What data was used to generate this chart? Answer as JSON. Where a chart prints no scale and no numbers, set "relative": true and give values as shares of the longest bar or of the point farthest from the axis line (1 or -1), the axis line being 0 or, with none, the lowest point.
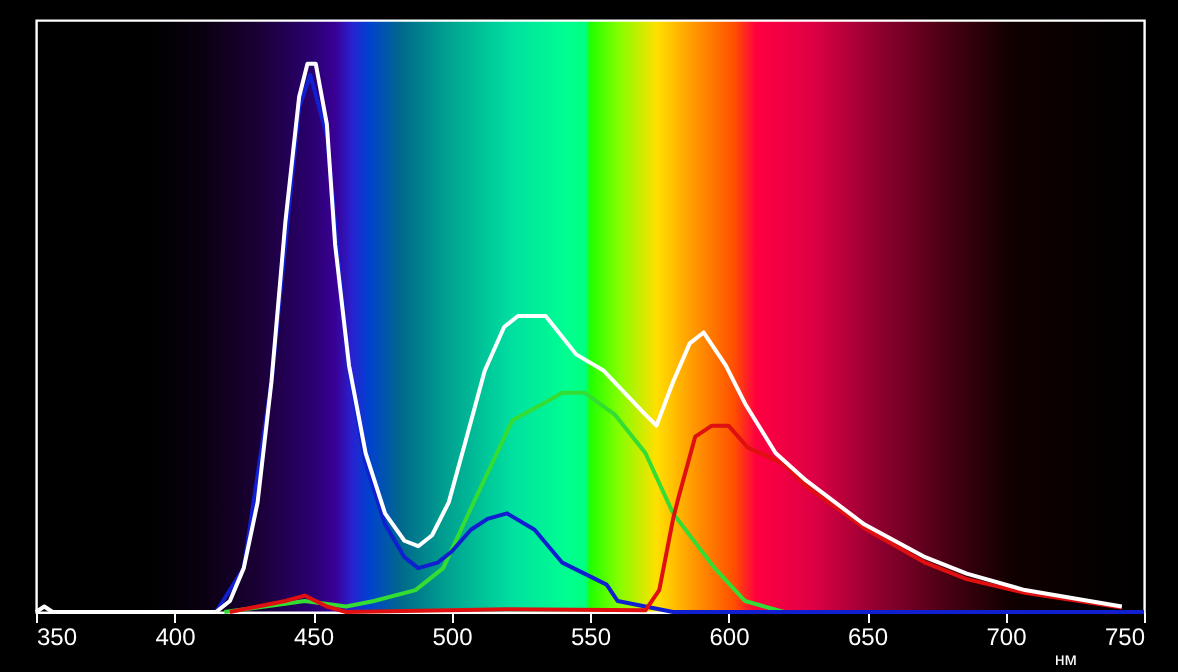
{
  "chart_data": {
    "type": "line",
    "xlabel": "нм",
    "relative": true,
    "xlim": [
      350,
      750
    ],
    "xticks": [
      350,
      400,
      450,
      500,
      550,
      600,
      650,
      700,
      750
    ],
    "grid": false,
    "line_style": "solid",
    "marker": "none",
    "series": [
      {
        "color": "#33dd33",
        "x": [
          418,
          440,
          447,
          462,
          472,
          487,
          497,
          508,
          522,
          533,
          540,
          548,
          559,
          570,
          580,
          595,
          606,
          620,
          750
        ],
        "values": [
          0,
          0.015,
          0.02,
          0.01,
          0.02,
          0.04,
          0.08,
          0.2,
          0.35,
          0.38,
          0.4,
          0.4,
          0.36,
          0.29,
          0.18,
          0.08,
          0.02,
          0,
          0
        ]
      },
      {
        "color": "#1020d0",
        "x": [
          415,
          425,
          435,
          445,
          449,
          455,
          463,
          469,
          476,
          483,
          488,
          495,
          500,
          507,
          513,
          520,
          530,
          540,
          548,
          556,
          560,
          570,
          580,
          750
        ],
        "values": [
          0,
          0.08,
          0.42,
          0.92,
          0.98,
          0.87,
          0.44,
          0.27,
          0.16,
          0.1,
          0.08,
          0.09,
          0.11,
          0.15,
          0.17,
          0.18,
          0.15,
          0.09,
          0.07,
          0.05,
          0.02,
          0.01,
          0,
          0
        ]
      },
      {
        "color": "#e01010",
        "x": [
          420,
          430,
          440,
          447,
          455,
          462,
          520,
          570,
          575,
          580,
          582,
          588,
          594,
          600,
          607,
          620,
          628,
          650,
          671,
          686,
          707,
          742
        ],
        "values": [
          0,
          0.01,
          0.02,
          0.03,
          0.01,
          0,
          0.005,
          0.003,
          0.04,
          0.17,
          0.21,
          0.32,
          0.34,
          0.34,
          0.3,
          0.27,
          0.23,
          0.15,
          0.09,
          0.06,
          0.035,
          0.008
        ]
      },
      {
        "color": "#ffffff",
        "x": [
          350,
          353,
          356,
          415,
          420,
          425,
          430,
          435,
          440,
          445,
          448,
          451,
          455,
          458,
          463,
          469,
          476,
          483,
          488,
          493,
          499,
          505,
          512,
          519,
          524,
          534,
          545,
          555,
          570,
          574,
          580,
          586,
          591,
          599,
          606,
          617,
          628,
          649,
          671,
          686,
          707,
          742
        ],
        "values": [
          0,
          0.01,
          0,
          0,
          0.02,
          0.08,
          0.2,
          0.42,
          0.71,
          0.94,
          1,
          1,
          0.89,
          0.67,
          0.45,
          0.29,
          0.18,
          0.13,
          0.12,
          0.14,
          0.2,
          0.31,
          0.44,
          0.52,
          0.54,
          0.54,
          0.47,
          0.44,
          0.36,
          0.34,
          0.42,
          0.49,
          0.51,
          0.45,
          0.38,
          0.29,
          0.24,
          0.16,
          0.1,
          0.07,
          0.04,
          0.01
        ]
      }
    ]
  }
}
